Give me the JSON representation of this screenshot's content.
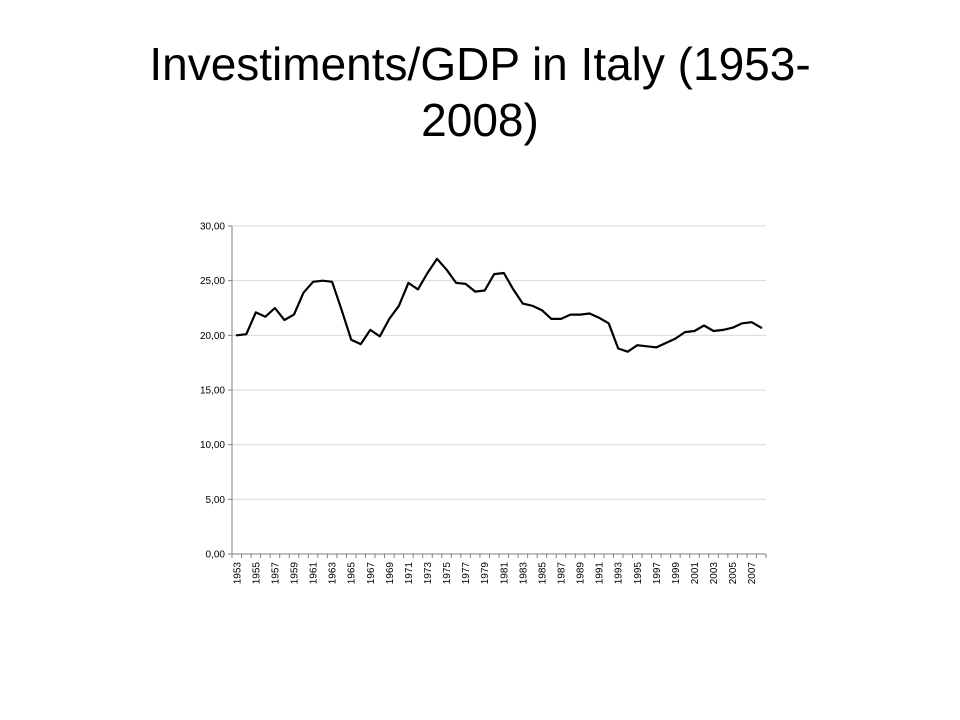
{
  "slide": {
    "title_line1": "Investiments/GDP in Italy (1953-",
    "title_line2": "2008)"
  },
  "chart_data": {
    "type": "line",
    "title": "",
    "xlabel": "",
    "ylabel": "",
    "ylim": [
      0,
      30
    ],
    "yticks": [
      "0,00",
      "5,00",
      "10,00",
      "15,00",
      "20,00",
      "25,00",
      "30,00"
    ],
    "ytick_values": [
      0,
      5,
      10,
      15,
      20,
      25,
      30
    ],
    "xticks": [
      "1953",
      "1955",
      "1957",
      "1959",
      "1961",
      "1963",
      "1965",
      "1967",
      "1969",
      "1971",
      "1973",
      "1975",
      "1977",
      "1979",
      "1981",
      "1983",
      "1985",
      "1987",
      "1989",
      "1991",
      "1993",
      "1995",
      "1997",
      "1999",
      "2001",
      "2003",
      "2005",
      "2007"
    ],
    "grid": true,
    "legend": "none",
    "line_color": "#000000",
    "grid_color": "#d9d9d9",
    "axis_color": "#808080",
    "x": [
      1953,
      1954,
      1955,
      1956,
      1957,
      1958,
      1959,
      1960,
      1961,
      1962,
      1963,
      1964,
      1965,
      1966,
      1967,
      1968,
      1969,
      1970,
      1971,
      1972,
      1973,
      1974,
      1975,
      1976,
      1977,
      1978,
      1979,
      1980,
      1981,
      1982,
      1983,
      1984,
      1985,
      1986,
      1987,
      1988,
      1989,
      1990,
      1991,
      1992,
      1993,
      1994,
      1995,
      1996,
      1997,
      1998,
      1999,
      2000,
      2001,
      2002,
      2003,
      2004,
      2005,
      2006,
      2007,
      2008
    ],
    "series": [
      {
        "values": [
          20.0,
          20.1,
          22.1,
          21.7,
          22.5,
          21.4,
          21.9,
          23.9,
          24.9,
          25.0,
          24.9,
          22.3,
          19.6,
          19.2,
          20.5,
          19.9,
          21.5,
          22.7,
          24.8,
          24.2,
          25.7,
          27.0,
          26.0,
          24.8,
          24.7,
          24.0,
          24.1,
          25.6,
          25.7,
          24.2,
          22.9,
          22.7,
          22.3,
          21.5,
          21.5,
          21.9,
          21.9,
          22.0,
          21.6,
          21.1,
          18.8,
          18.5,
          19.1,
          19.0,
          18.9,
          19.3,
          19.7,
          20.3,
          20.4,
          20.9,
          20.4,
          20.5,
          20.7,
          21.1,
          21.2,
          20.7
        ]
      }
    ]
  }
}
